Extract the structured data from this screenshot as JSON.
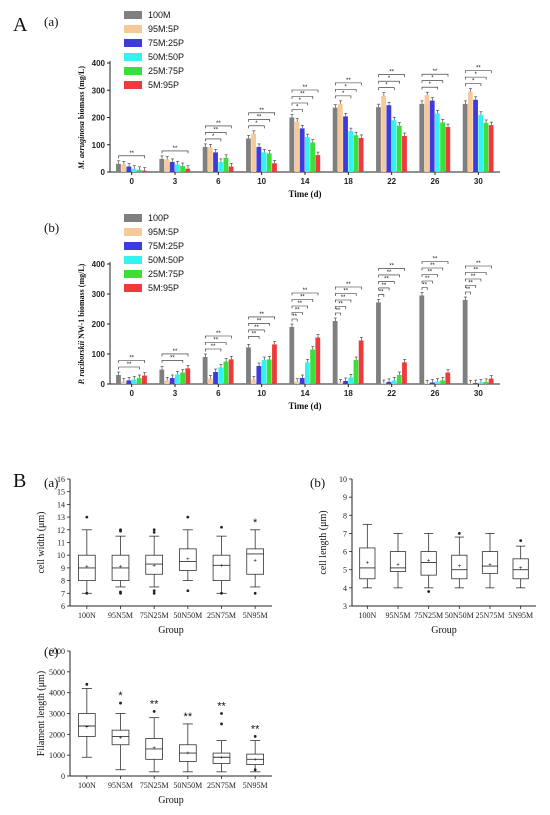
{
  "figure": {
    "label_A": "A",
    "label_B": "B"
  },
  "chart_data": [
    {
      "type": "bar",
      "panel": "(a)",
      "xlabel": "Time (d)",
      "ylabel_italic": "M. aeruginosa",
      "ylabel_rest": " biomass (mg/L)",
      "ylim": [
        0,
        400
      ],
      "yticks": [
        0,
        100,
        200,
        300,
        400
      ],
      "categories": [
        "0",
        "3",
        "6",
        "10",
        "14",
        "18",
        "22",
        "26",
        "30"
      ],
      "series": [
        {
          "name": "100M",
          "color": "#7f7f7f",
          "values": [
            30,
            48,
            92,
            123,
            200,
            236,
            238,
            250,
            250
          ]
        },
        {
          "name": "95M:5P",
          "color": "#f6c99a",
          "values": [
            28,
            46,
            90,
            140,
            185,
            250,
            280,
            282,
            295
          ]
        },
        {
          "name": "75M:25P",
          "color": "#3b3be0",
          "values": [
            20,
            37,
            72,
            92,
            160,
            204,
            245,
            262,
            265
          ]
        },
        {
          "name": "50M:50P",
          "color": "#35f2f2",
          "values": [
            12,
            28,
            37,
            72,
            128,
            150,
            190,
            215,
            210
          ]
        },
        {
          "name": "25M:75P",
          "color": "#3adf3a",
          "values": [
            8,
            22,
            52,
            68,
            108,
            135,
            170,
            182,
            180
          ]
        },
        {
          "name": "5M:95P",
          "color": "#ee3a3a",
          "values": [
            5,
            12,
            20,
            32,
            62,
            125,
            132,
            165,
            172
          ]
        }
      ],
      "significance": {
        "0": [
          "**"
        ],
        "3": [
          "**"
        ],
        "6": [
          "**",
          "**",
          "*"
        ],
        "10": [
          "**",
          "**",
          "*"
        ],
        "14": [
          "**",
          "**",
          "*",
          "*"
        ],
        "18": [
          "**",
          "*",
          "*"
        ],
        "22": [
          "**",
          "*",
          "*"
        ],
        "26": [
          "**",
          "*",
          "*"
        ],
        "30": [
          "**",
          "*",
          "*"
        ]
      }
    },
    {
      "type": "bar",
      "panel": "(b)",
      "xlabel": "Time (d)",
      "ylabel_italic": "P. raciborskii",
      "ylabel_rest": " NW-1 biomass (mg/L)",
      "ylim": [
        0,
        400
      ],
      "yticks": [
        0,
        100,
        200,
        300,
        400
      ],
      "categories": [
        "0",
        "3",
        "6",
        "10",
        "14",
        "18",
        "22",
        "26",
        "30"
      ],
      "series": [
        {
          "name": "100P",
          "color": "#7f7f7f",
          "values": [
            30,
            48,
            90,
            122,
            190,
            210,
            272,
            295,
            280
          ]
        },
        {
          "name": "95M:5P",
          "color": "#f6c99a",
          "values": [
            8,
            12,
            18,
            15,
            8,
            5,
            3,
            2,
            2
          ]
        },
        {
          "name": "75M:25P",
          "color": "#3b3be0",
          "values": [
            12,
            20,
            40,
            60,
            20,
            10,
            7,
            5,
            3
          ]
        },
        {
          "name": "50M:50P",
          "color": "#35f2f2",
          "values": [
            15,
            32,
            55,
            80,
            72,
            22,
            12,
            8,
            5
          ]
        },
        {
          "name": "25M:75P",
          "color": "#3adf3a",
          "values": [
            20,
            38,
            75,
            82,
            115,
            80,
            30,
            12,
            7
          ]
        },
        {
          "name": "5M:95P",
          "color": "#ee3a3a",
          "values": [
            28,
            52,
            82,
            132,
            155,
            145,
            72,
            38,
            18
          ]
        }
      ],
      "significance": {
        "0": [
          "**",
          "**"
        ],
        "3": [
          "**",
          "**"
        ],
        "6": [
          "**",
          "**",
          "**"
        ],
        "10": [
          "**",
          "**",
          "**",
          "**"
        ],
        "14": [
          "**",
          "**",
          "**",
          "**",
          "**"
        ],
        "18": [
          "**",
          "**",
          "**",
          "**",
          "**"
        ],
        "22": [
          "**",
          "**",
          "**",
          "**",
          "**"
        ],
        "26": [
          "**",
          "**",
          "**",
          "**",
          "**"
        ],
        "30": [
          "**",
          "**",
          "**",
          "**",
          "**"
        ]
      }
    },
    {
      "type": "boxplot",
      "panel": "(a)",
      "xlabel": "Group",
      "ylabel": "cell width (μm)",
      "ylim": [
        6,
        16
      ],
      "yticks": [
        6,
        7,
        8,
        9,
        10,
        11,
        12,
        13,
        14,
        15,
        16
      ],
      "categories": [
        "100N",
        "95N5M",
        "75N25M",
        "50N50M",
        "25N75M",
        "5N95M"
      ],
      "boxes": [
        {
          "min": 7,
          "q1": 8,
          "median": 9,
          "q3": 10,
          "max": 12,
          "mean": 9.1,
          "outliers": [
            13,
            7
          ]
        },
        {
          "min": 7.5,
          "q1": 8,
          "median": 9,
          "q3": 10,
          "max": 11.5,
          "mean": 9.1,
          "outliers": [
            12,
            11.9,
            7.1,
            7
          ]
        },
        {
          "min": 7.5,
          "q1": 8.5,
          "median": 9.3,
          "q3": 10,
          "max": 11.5,
          "mean": 9.2,
          "outliers": [
            12,
            11.8,
            7.2,
            7
          ]
        },
        {
          "min": 8,
          "q1": 8.8,
          "median": 9.5,
          "q3": 10.5,
          "max": 12,
          "mean": 9.7,
          "outliers": [
            13,
            7.2
          ]
        },
        {
          "min": 7,
          "q1": 8,
          "median": 9.2,
          "q3": 10,
          "max": 11.5,
          "mean": 9.2,
          "outliers": [
            12.2,
            7
          ]
        },
        {
          "min": 7.5,
          "q1": 8.5,
          "median": 10.1,
          "q3": 10.5,
          "max": 12,
          "mean": 9.6,
          "outliers": [
            7
          ]
        }
      ],
      "significance": {
        "5N95M": "*"
      }
    },
    {
      "type": "boxplot",
      "panel": "(b)",
      "xlabel": "Group",
      "ylabel": "cell length (μm)",
      "ylim": [
        3,
        10
      ],
      "yticks": [
        3,
        4,
        5,
        6,
        7,
        8,
        9,
        10
      ],
      "categories": [
        "100N",
        "95N5M",
        "75N25M",
        "50N50M",
        "25N75M",
        "5N95M"
      ],
      "boxes": [
        {
          "min": 4,
          "q1": 4.5,
          "median": 5.1,
          "q3": 6.2,
          "max": 7.5,
          "mean": 5.4,
          "outliers": []
        },
        {
          "min": 4,
          "q1": 4.9,
          "median": 5.1,
          "q3": 6,
          "max": 7,
          "mean": 5.3,
          "outliers": []
        },
        {
          "min": 4,
          "q1": 4.7,
          "median": 5.4,
          "q3": 6,
          "max": 7,
          "mean": 5.5,
          "outliers": [
            3.8
          ]
        },
        {
          "min": 4,
          "q1": 4.5,
          "median": 5,
          "q3": 5.8,
          "max": 6.8,
          "mean": 5.2,
          "outliers": [
            7
          ]
        },
        {
          "min": 4,
          "q1": 4.8,
          "median": 5.2,
          "q3": 6,
          "max": 7,
          "mean": 5.3,
          "outliers": []
        },
        {
          "min": 4,
          "q1": 4.5,
          "median": 5,
          "q3": 5.6,
          "max": 6.3,
          "mean": 5.1,
          "outliers": [
            6.6
          ]
        }
      ]
    },
    {
      "type": "boxplot",
      "panel": "(c)",
      "xlabel": "Group",
      "ylabel": "Filament length (μm)",
      "ylim": [
        0,
        6000
      ],
      "yticks": [
        0,
        1000,
        2000,
        3000,
        4000,
        5000,
        6000
      ],
      "categories": [
        "100N",
        "95N5M",
        "75N25M",
        "50N50M",
        "25N75M",
        "5N95M"
      ],
      "boxes": [
        {
          "min": 900,
          "q1": 1900,
          "median": 2400,
          "q3": 3000,
          "max": 4200,
          "mean": 2350,
          "outliers": [
            4400
          ]
        },
        {
          "min": 300,
          "q1": 1500,
          "median": 1900,
          "q3": 2200,
          "max": 3000,
          "mean": 1850,
          "outliers": [
            3500
          ]
        },
        {
          "min": 200,
          "q1": 800,
          "median": 1300,
          "q3": 1800,
          "max": 2800,
          "mean": 1350,
          "outliers": [
            3100
          ]
        },
        {
          "min": 200,
          "q1": 700,
          "median": 1100,
          "q3": 1500,
          "max": 2500,
          "mean": 1100,
          "outliers": []
        },
        {
          "min": 200,
          "q1": 600,
          "median": 900,
          "q3": 1100,
          "max": 1700,
          "mean": 880,
          "outliers": [
            2500,
            3000
          ]
        },
        {
          "min": 200,
          "q1": 550,
          "median": 800,
          "q3": 1050,
          "max": 1700,
          "mean": 800,
          "outliers": [
            1900,
            300
          ]
        }
      ],
      "significance": {
        "95N5M": "*",
        "75N25M": "**",
        "50N50M": "**",
        "25N75M": "**",
        "5N95M": "**"
      }
    }
  ]
}
